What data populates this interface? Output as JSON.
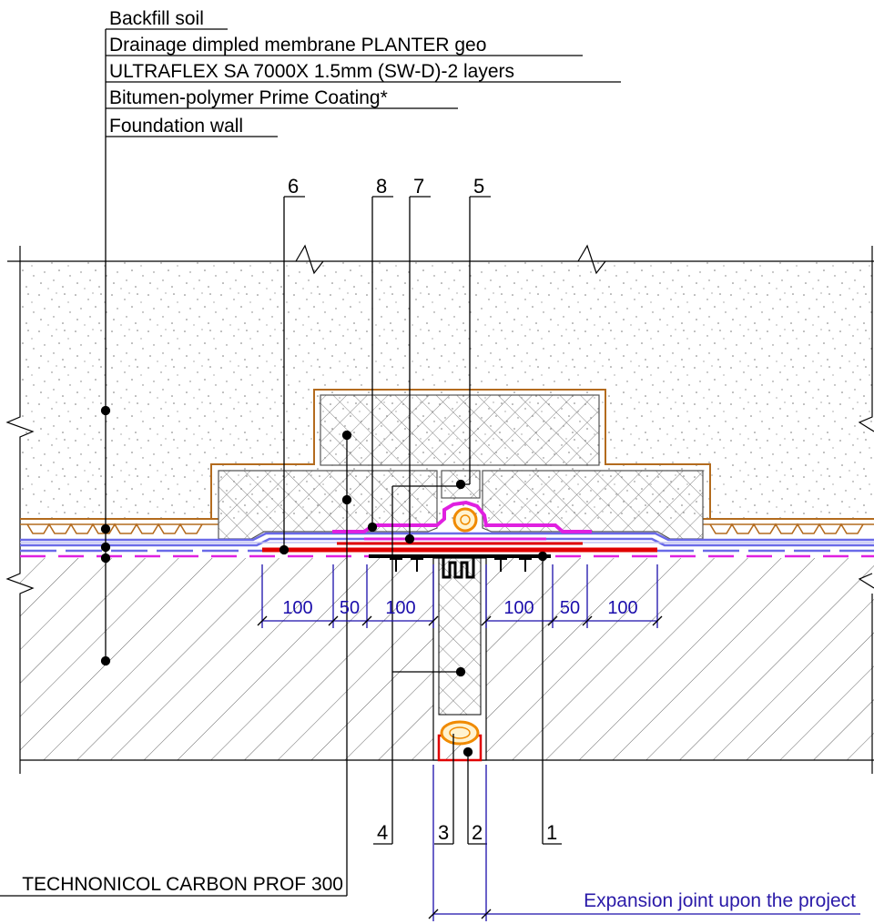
{
  "layer_callouts": [
    "Backfill soil",
    "Drainage dimpled membrane PLANTER geo",
    "ULTRAFLEX SA 7000X 1.5mm (SW-D)-2 layers",
    "Bitumen-polymer Prime Coating*",
    "Foundation wall"
  ],
  "top_item_numbers": [
    "6",
    "8",
    "7",
    "5"
  ],
  "bottom_item_numbers": [
    "4",
    "3",
    "2",
    "1"
  ],
  "insulation_label": "TECHNONICOL CARBON PROF 300",
  "dimensions": [
    "100",
    "50",
    "100",
    "100",
    "50",
    "100"
  ],
  "expansion_joint_note": "Expansion joint upon the project",
  "colors": {
    "line": "#000000",
    "dimension": "#1a0dab",
    "membrane_red": "#e00000",
    "membrane_magenta": "#e020e0",
    "membrane_blue": "#6a6ae8",
    "drainage_brown": "#b36b1e",
    "backer_rod_orange": "#f08a00"
  }
}
